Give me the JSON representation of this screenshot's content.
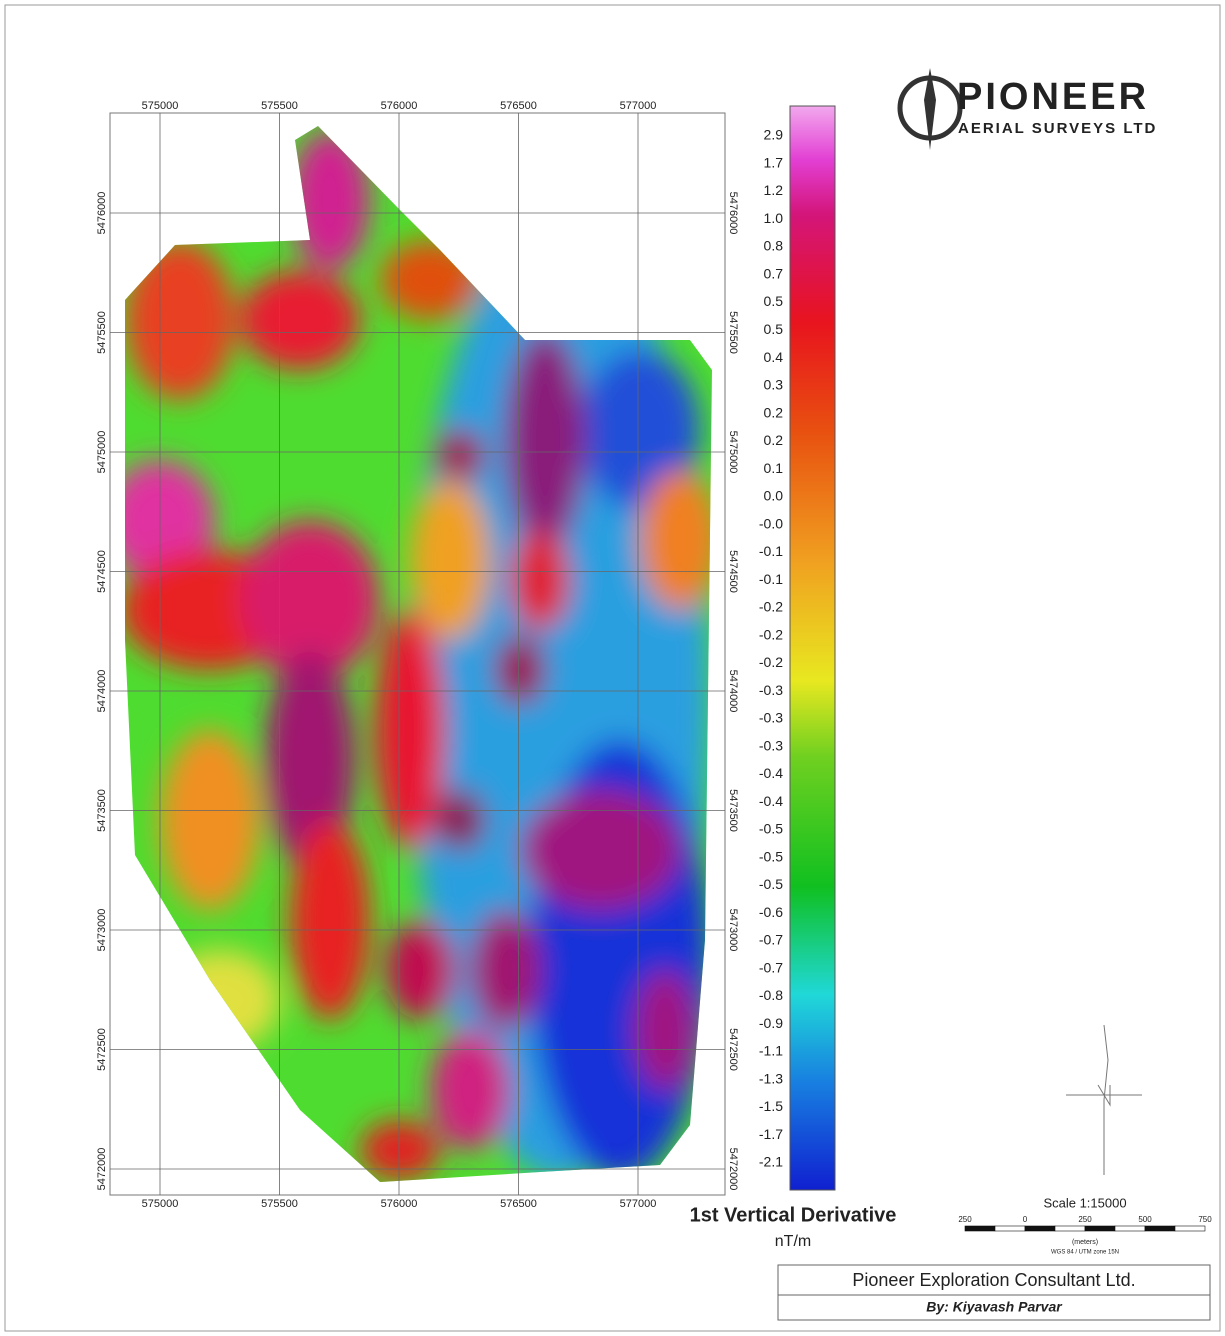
{
  "logo": {
    "name": "PIONEER",
    "subtitle": "AERIAL SURVEYS LTD"
  },
  "map": {
    "x_ticks": [
      575000,
      575500,
      576000,
      576500,
      577000
    ],
    "y_ticks": [
      5476000,
      5475500,
      5475000,
      5474500,
      5474000,
      5473500,
      5473000,
      5472500,
      5472000
    ]
  },
  "colorbar": {
    "labels": [
      "2.9",
      "1.7",
      "1.2",
      "1.0",
      "0.8",
      "0.7",
      "0.5",
      "0.5",
      "0.4",
      "0.3",
      "0.2",
      "0.2",
      "0.1",
      "0.0",
      "-0.0",
      "-0.1",
      "-0.1",
      "-0.2",
      "-0.2",
      "-0.2",
      "-0.3",
      "-0.3",
      "-0.3",
      "-0.4",
      "-0.4",
      "-0.5",
      "-0.5",
      "-0.5",
      "-0.6",
      "-0.7",
      "-0.7",
      "-0.8",
      "-0.9",
      "-1.1",
      "-1.3",
      "-1.5",
      "-1.7",
      "-2.1"
    ],
    "title": "1st Vertical Derivative",
    "unit": "nT/m"
  },
  "scale": {
    "title": "Scale 1:15000",
    "ticks": [
      "250",
      "0",
      "250",
      "500",
      "750"
    ],
    "unit": "(meters)",
    "projection": "WGS 84 / UTM zone 15N"
  },
  "footer": {
    "company": "Pioneer Exploration Consultant Ltd.",
    "author": "By: Kiyavash Parvar"
  }
}
